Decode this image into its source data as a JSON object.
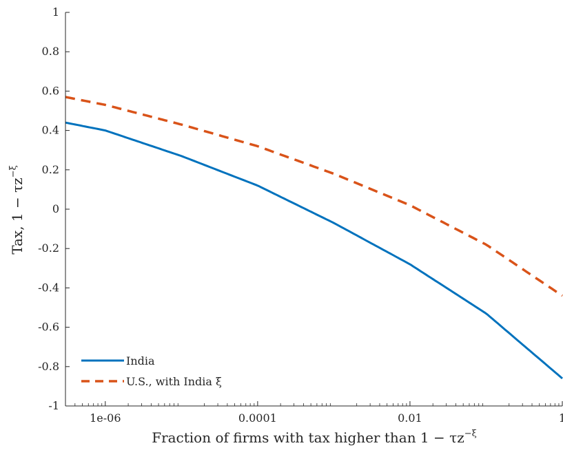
{
  "chart_data": {
    "type": "line",
    "xlabel": "Fraction of firms with tax higher than 1 − τz",
    "xlabel_sup": "−ξ",
    "ylabel": "Tax, 1 − τz",
    "ylabel_sup": "−ξ",
    "xscale": "log",
    "xlim": [
      3e-07,
      1
    ],
    "ylim": [
      -1,
      1
    ],
    "x_ticks": [
      1e-06,
      0.0001,
      0.01,
      1
    ],
    "x_tick_labels": [
      "1e-06",
      "0.0001",
      "0.01",
      "1"
    ],
    "y_ticks": [
      -1,
      -0.8,
      -0.6,
      -0.4,
      -0.2,
      0,
      0.2,
      0.4,
      0.6,
      0.8,
      1
    ],
    "y_tick_labels": [
      "-1",
      "-0.8",
      "-0.6",
      "-0.4",
      "-0.2",
      "0",
      "0.2",
      "0.4",
      "0.6",
      "0.8",
      "1"
    ],
    "grid": false,
    "legend_position": "bottom-left",
    "series": [
      {
        "name": "India",
        "color": "#0072BD",
        "style": "solid",
        "x": [
          3e-07,
          1e-06,
          1e-05,
          0.0001,
          0.001,
          0.01,
          0.1,
          1
        ],
        "y": [
          0.44,
          0.4,
          0.27,
          0.12,
          -0.07,
          -0.28,
          -0.53,
          -0.86
        ]
      },
      {
        "name": "U.S., with India ξ",
        "color": "#D95319",
        "style": "dashed",
        "x": [
          3e-07,
          1e-06,
          1e-05,
          0.0001,
          0.001,
          0.01,
          0.1,
          1
        ],
        "y": [
          0.57,
          0.53,
          0.43,
          0.32,
          0.18,
          0.02,
          -0.18,
          -0.44
        ]
      }
    ]
  }
}
